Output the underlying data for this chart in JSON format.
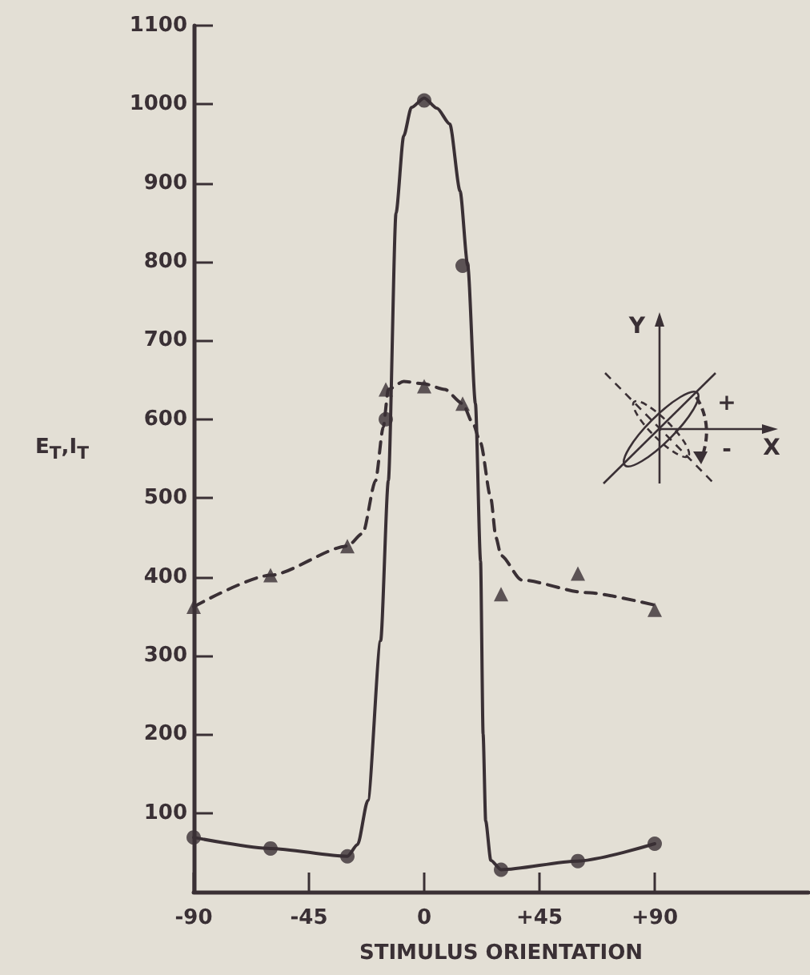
{
  "chart_data": {
    "type": "scatter",
    "xlabel": "STIMULUS ORIENTATION",
    "ylabel": "E$_{T}$,I$_{T}$",
    "xlim": [
      -90,
      150
    ],
    "xticks": [
      -90,
      -45,
      0,
      {
        "value": 45,
        "label": "+45"
      },
      {
        "value": 90,
        "label": "+90"
      }
    ],
    "ylim": [
      0,
      1100
    ],
    "yticks": [
      100,
      200,
      300,
      400,
      500,
      600,
      700,
      800,
      900,
      1000,
      1100
    ],
    "grid": false,
    "annotations": [
      "Y",
      "X",
      "+",
      "-"
    ],
    "series": [
      {
        "marker": "circle",
        "color": "#3a3035",
        "x": [
          -90,
          -60,
          -30,
          -15,
          0,
          15,
          30,
          60,
          90
        ],
        "values": [
          69,
          55,
          45,
          600,
          1005,
          795,
          28,
          39,
          61
        ]
      },
      {
        "marker": "triangle",
        "color": "#3a3035",
        "x": [
          -90,
          -60,
          -30,
          -15,
          0,
          15,
          30,
          60,
          90
        ],
        "values": [
          362,
          402,
          439,
          638,
          642,
          620,
          378,
          404,
          358
        ]
      },
      {
        "type": "line",
        "marker": "none",
        "line_style": "solid",
        "color": "#3a3035",
        "x": [
          -90,
          -60,
          -30,
          -26,
          -22,
          -17,
          -14,
          -11,
          -8,
          -5,
          0,
          5,
          10,
          14,
          17,
          20,
          22,
          23,
          24,
          26,
          30,
          60,
          90
        ],
        "values": [
          69,
          55,
          45,
          60,
          116,
          319,
          522,
          862,
          960,
          996,
          1008,
          995,
          975,
          890,
          795,
          620,
          420,
          200,
          90,
          40,
          28,
          39,
          61
        ]
      },
      {
        "type": "line",
        "marker": "none",
        "line_style": "dashed",
        "color": "#3a3035",
        "x": [
          -90,
          -60,
          -30,
          -24,
          -19,
          -16,
          -14,
          -8,
          0,
          8,
          15,
          19,
          22,
          26,
          28,
          30,
          38,
          63,
          90
        ],
        "values": [
          362,
          402,
          439,
          455,
          522,
          590,
          638,
          648,
          645,
          638,
          620,
          595,
          570,
          500,
          450,
          427,
          396,
          380,
          364
        ]
      }
    ]
  }
}
